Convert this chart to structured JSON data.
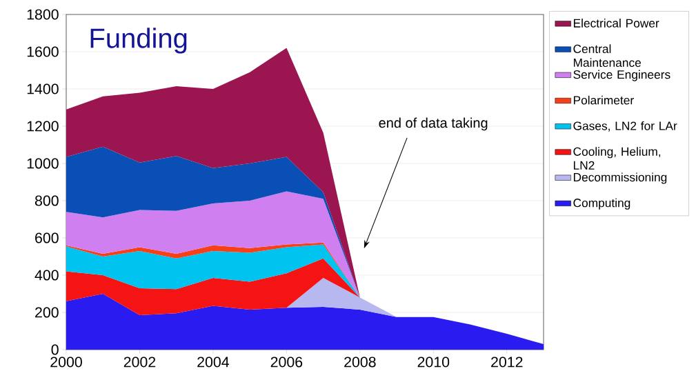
{
  "chart_data": {
    "type": "area",
    "stacked": true,
    "title": "Funding",
    "x": [
      2000,
      2001,
      2002,
      2003,
      2004,
      2005,
      2006,
      2007,
      2008,
      2009,
      2010,
      2011,
      2012,
      2013
    ],
    "series": [
      {
        "name": "Computing",
        "color": "#2a1cf0",
        "values": [
          260,
          300,
          185,
          195,
          235,
          215,
          225,
          230,
          215,
          175,
          175,
          135,
          85,
          30
        ]
      },
      {
        "name": "Decommissioning",
        "color": "#b8b8f0",
        "values": [
          null,
          null,
          null,
          null,
          null,
          null,
          0,
          155,
          65,
          0,
          null,
          null,
          null,
          null
        ]
      },
      {
        "name": "Cooling, Helium, LN2",
        "color": "#f51414",
        "values": [
          160,
          100,
          145,
          130,
          150,
          150,
          185,
          105,
          0,
          null,
          null,
          null,
          null,
          null
        ]
      },
      {
        "name": "Gases, LN2 for LAr",
        "color": "#00c3ef",
        "values": [
          135,
          100,
          200,
          165,
          145,
          155,
          140,
          75,
          0,
          null,
          null,
          null,
          null,
          null
        ]
      },
      {
        "name": "Polarimeter",
        "color": "#f5401a",
        "values": [
          5,
          15,
          20,
          25,
          30,
          25,
          15,
          10,
          0,
          null,
          null,
          null,
          null,
          null
        ]
      },
      {
        "name": "Service Engineers",
        "color": "#cf7ff0",
        "values": [
          180,
          195,
          200,
          230,
          225,
          255,
          285,
          235,
          0,
          null,
          null,
          null,
          null,
          null
        ]
      },
      {
        "name": "Central Maintenance",
        "color": "#0a4fb5",
        "values": [
          295,
          380,
          255,
          295,
          190,
          200,
          185,
          35,
          0,
          null,
          null,
          null,
          null,
          null
        ]
      },
      {
        "name": "Electrical Power",
        "color": "#9b1650",
        "values": [
          255,
          270,
          375,
          375,
          425,
          490,
          585,
          320,
          0,
          null,
          null,
          null,
          null,
          null
        ]
      }
    ],
    "xlim": [
      2000,
      2013
    ],
    "ylim": [
      0,
      1800
    ],
    "xticks": [
      2000,
      2002,
      2004,
      2006,
      2008,
      2010,
      2012
    ],
    "yticks": [
      0,
      200,
      400,
      600,
      800,
      1000,
      1200,
      1400,
      1600,
      1800
    ],
    "grid": "y",
    "legend": "right",
    "annotations": [
      "end of data taking"
    ]
  }
}
